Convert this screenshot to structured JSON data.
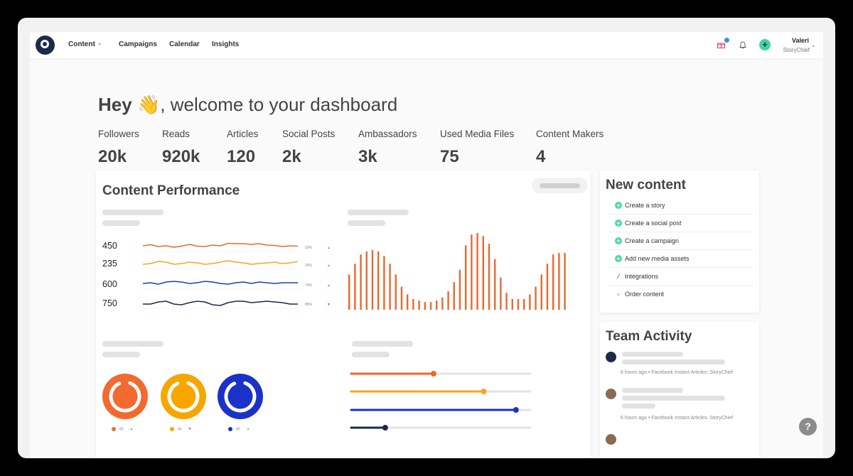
{
  "nav": {
    "items": [
      "Content",
      "Campaigns",
      "Calendar",
      "Insights"
    ],
    "user_name": "Valeri",
    "user_org": "StoryChief",
    "plus_label": "+"
  },
  "greeting": {
    "hey": "Hey",
    "wave": "👋",
    "rest": ", welcome to your dashboard"
  },
  "stats": [
    {
      "label": "Followers",
      "value": "20k"
    },
    {
      "label": "Reads",
      "value": "920k"
    },
    {
      "label": "Articles",
      "value": "120"
    },
    {
      "label": "Social Posts",
      "value": "2k"
    },
    {
      "label": "Ambassadors",
      "value": "3k"
    },
    {
      "label": "Used Media Files",
      "value": "75"
    },
    {
      "label": "Content Makers",
      "value": "4"
    }
  ],
  "performance": {
    "title": "Content Performance",
    "lines": [
      {
        "label": "450",
        "pct": "10%",
        "color": "#e8692f",
        "trend": "up",
        "trend_color": "#3bbcb0"
      },
      {
        "label": "235",
        "pct": "25%",
        "color": "#f5a623",
        "trend": "up",
        "trend_color": "#3bbcb0"
      },
      {
        "label": "600",
        "pct": "70%",
        "color": "#1f3ea8",
        "trend": "up",
        "trend_color": "#3bbcb0"
      },
      {
        "label": "750",
        "pct": "85%",
        "color": "#1b2a44",
        "trend": "down",
        "trend_color": "#e0365a"
      }
    ],
    "rings": [
      {
        "color": "#f26a30",
        "value": "80",
        "trend": "up",
        "trend_color": "#3bbcb0"
      },
      {
        "color": "#f7a600",
        "value": "45",
        "trend": "down",
        "trend_color": "#e0365a"
      },
      {
        "color": "#1a32c8",
        "value": "80",
        "trend": "up",
        "trend_color": "#3bbcb0"
      }
    ],
    "sliders": [
      {
        "color": "#e8692f",
        "value": 0.46
      },
      {
        "color": "#f5a623",
        "value": 0.74
      },
      {
        "color": "#1a32c8",
        "value": 0.92
      },
      {
        "color": "#1b2a44",
        "value": 0.19
      }
    ],
    "bar_color": "#e8692f",
    "bars": [
      0.46,
      0.6,
      0.72,
      0.76,
      0.78,
      0.76,
      0.7,
      0.6,
      0.46,
      0.3,
      0.2,
      0.14,
      0.12,
      0.1,
      0.1,
      0.12,
      0.16,
      0.24,
      0.36,
      0.52,
      0.84,
      0.98,
      1.0,
      0.96,
      0.86,
      0.66,
      0.42,
      0.22,
      0.14,
      0.14,
      0.14,
      0.2,
      0.3,
      0.46,
      0.6,
      0.72,
      0.74,
      0.74
    ]
  },
  "new_content": {
    "title": "New content",
    "actions": [
      {
        "label": "Create a story",
        "icon": "plus-circle-icon",
        "glyph": "+"
      },
      {
        "label": "Create a social post",
        "icon": "plus-circle-icon",
        "glyph": "+"
      },
      {
        "label": "Create a campaign",
        "icon": "plus-circle-icon",
        "glyph": "+"
      },
      {
        "label": "Add new media assets",
        "icon": "plus-circle-icon",
        "glyph": "+"
      },
      {
        "label": "Integrations",
        "icon": "wand-icon",
        "glyph": "⁄"
      },
      {
        "label": "Order content",
        "icon": "document-icon",
        "glyph": "▫"
      }
    ]
  },
  "team": {
    "title": "Team Activity",
    "items": [
      {
        "meta": "6 hours ago • Facebook Instant Articles: StoryChief"
      },
      {
        "meta": "6 hours ago • Facebook Instant Articles: StoryChief"
      }
    ]
  },
  "help_label": "?"
}
